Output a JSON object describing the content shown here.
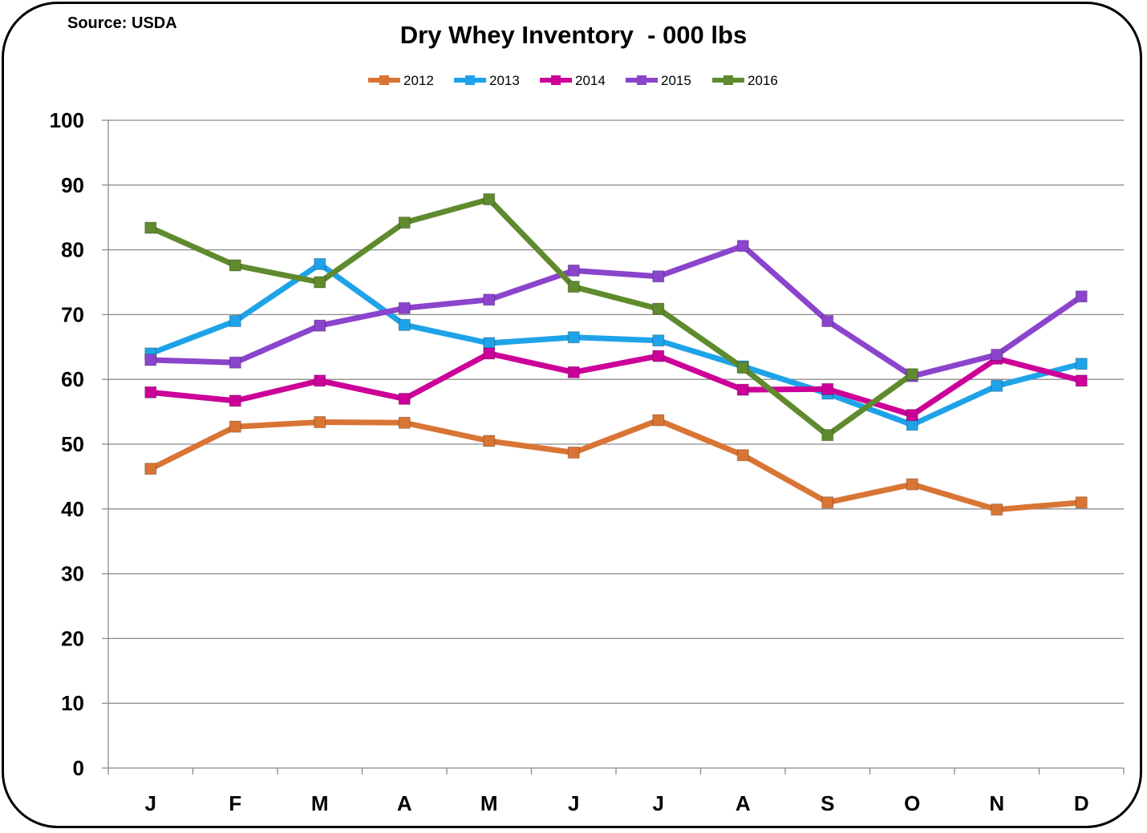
{
  "source_note": "Source: USDA",
  "chart_data": {
    "type": "line",
    "title": "Dry Whey Inventory  - 000 lbs",
    "xlabel": "",
    "ylabel": "",
    "categories": [
      "J",
      "F",
      "M",
      "A",
      "M",
      "J",
      "J",
      "A",
      "S",
      "O",
      "N",
      "D"
    ],
    "ylim": [
      0,
      100
    ],
    "yticks": [
      0,
      10,
      20,
      30,
      40,
      50,
      60,
      70,
      80,
      90,
      100
    ],
    "grid": true,
    "legend": "top",
    "series": [
      {
        "name": "2012",
        "color": "#d97534",
        "values": [
          46.2,
          52.7,
          53.4,
          53.3,
          50.5,
          48.7,
          53.7,
          48.3,
          41.0,
          43.8,
          39.9,
          41.0
        ]
      },
      {
        "name": "2013",
        "color": "#1fa3e8",
        "values": [
          64.0,
          69.0,
          77.8,
          68.4,
          65.6,
          66.5,
          66.0,
          62.0,
          57.8,
          53.0,
          59.0,
          62.4
        ]
      },
      {
        "name": "2014",
        "color": "#cc0099",
        "values": [
          58.0,
          56.7,
          59.8,
          57.0,
          64.0,
          61.1,
          63.6,
          58.4,
          58.5,
          54.5,
          63.2,
          59.8
        ]
      },
      {
        "name": "2015",
        "color": "#8b44cc",
        "values": [
          63.0,
          62.6,
          68.3,
          71.0,
          72.3,
          76.8,
          75.9,
          80.6,
          69.0,
          60.5,
          63.8,
          72.8
        ]
      },
      {
        "name": "2016",
        "color": "#5f8a2e",
        "values": [
          83.4,
          77.6,
          75.0,
          84.2,
          87.8,
          74.3,
          70.9,
          61.8,
          51.4,
          60.8,
          null,
          null
        ]
      }
    ]
  }
}
